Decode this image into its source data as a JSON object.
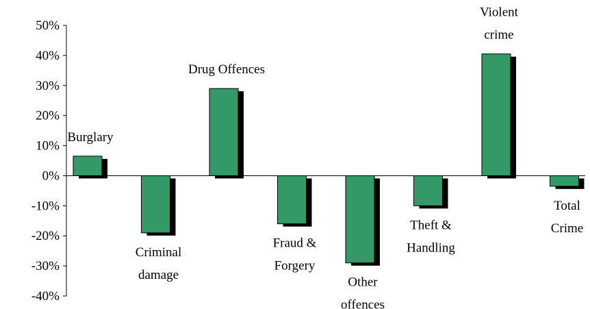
{
  "chart_data": {
    "type": "bar",
    "categories": [
      [
        "Burglary"
      ],
      [
        "Criminal",
        "damage"
      ],
      [
        "Drug Offences"
      ],
      [
        "Fraud &",
        "Forgery"
      ],
      [
        "Other",
        "offences"
      ],
      [
        "Theft &",
        "Handling"
      ],
      [
        "Violent",
        "crime"
      ],
      [
        "Total",
        "Crime"
      ]
    ],
    "values": [
      6.5,
      -19,
      29,
      -16,
      -29,
      -10,
      40.5,
      -3.5
    ],
    "color": "#339966",
    "ylim": [
      -40,
      50
    ],
    "yticks": [
      {
        "value": -40,
        "label": "-40%"
      },
      {
        "value": -30,
        "label": "-30%"
      },
      {
        "value": -20,
        "label": "-20%"
      },
      {
        "value": -10,
        "label": "-10%"
      },
      {
        "value": 0,
        "label": "0%"
      },
      {
        "value": 10,
        "label": "10%"
      },
      {
        "value": 20,
        "label": "20%"
      },
      {
        "value": 30,
        "label": "30%"
      },
      {
        "value": 40,
        "label": "40%"
      },
      {
        "value": 50,
        "label": "50%"
      }
    ]
  }
}
